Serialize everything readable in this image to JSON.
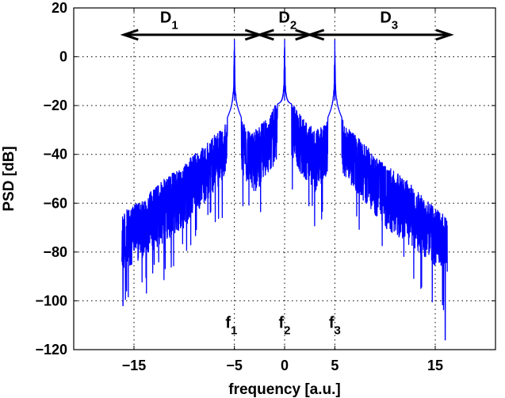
{
  "chart_data": {
    "type": "line",
    "xlabel": "frequency [a.u.]",
    "ylabel": "PSD   [dB]",
    "xlim": [
      -21,
      21
    ],
    "ylim": [
      -120,
      20
    ],
    "xticks": [
      -15,
      -5,
      0,
      5,
      15
    ],
    "xtick_labels": [
      "−15",
      "−5",
      "0",
      "5",
      "15"
    ],
    "yticks": [
      20,
      0,
      -20,
      -40,
      -60,
      -80,
      -100,
      -120
    ],
    "ytick_labels": [
      "20",
      "0",
      "−20",
      "−40",
      "−60",
      "−80",
      "−100",
      "−120"
    ],
    "grid": true,
    "line_color": "#0000ff",
    "series": [
      {
        "peaks": [
          {
            "x": -5,
            "y": 7
          },
          {
            "x": 0,
            "y": 7
          },
          {
            "x": 5,
            "y": 7
          }
        ],
        "envelope": {
          "x": [
            -16.2,
            -14,
            -12,
            -10,
            -8,
            -6,
            -5,
            -4,
            -3,
            -2,
            -1,
            0,
            1,
            2,
            3,
            4,
            5,
            6,
            8,
            10,
            12,
            14,
            16.2
          ],
          "upper": [
            -64,
            -58,
            -50,
            -44,
            -36,
            -28,
            -18,
            -28,
            -30,
            -26,
            -20,
            -18,
            -20,
            -26,
            -30,
            -28,
            -18,
            -28,
            -36,
            -44,
            -50,
            -58,
            -66
          ],
          "lower": [
            -88,
            -82,
            -76,
            -70,
            -60,
            -50,
            -40,
            -50,
            -56,
            -50,
            -44,
            -42,
            -44,
            -50,
            -56,
            -50,
            -40,
            -50,
            -60,
            -70,
            -76,
            -82,
            -90
          ]
        },
        "min_spikes": [
          {
            "x": -16.1,
            "y": -102
          },
          {
            "x": 16.0,
            "y": -116
          }
        ]
      }
    ],
    "annotations": [
      {
        "text": "D",
        "sub": "1",
        "x": -11.5,
        "y": 14
      },
      {
        "text": "D",
        "sub": "2",
        "x": 0.3,
        "y": 14
      },
      {
        "text": "D",
        "sub": "3",
        "x": 10.4,
        "y": 14
      },
      {
        "text": "f",
        "sub": "1",
        "x": -5.3,
        "y": -111
      },
      {
        "text": "f",
        "sub": "2",
        "x": 0.0,
        "y": -111
      },
      {
        "text": "f",
        "sub": "3",
        "x": 5.0,
        "y": -111
      }
    ],
    "arrows": [
      {
        "from": -16,
        "to": -2.5,
        "y": 9
      },
      {
        "from": -2.5,
        "to": 2.5,
        "y": 9
      },
      {
        "from": 2.5,
        "to": 16.5,
        "y": 9
      }
    ]
  }
}
